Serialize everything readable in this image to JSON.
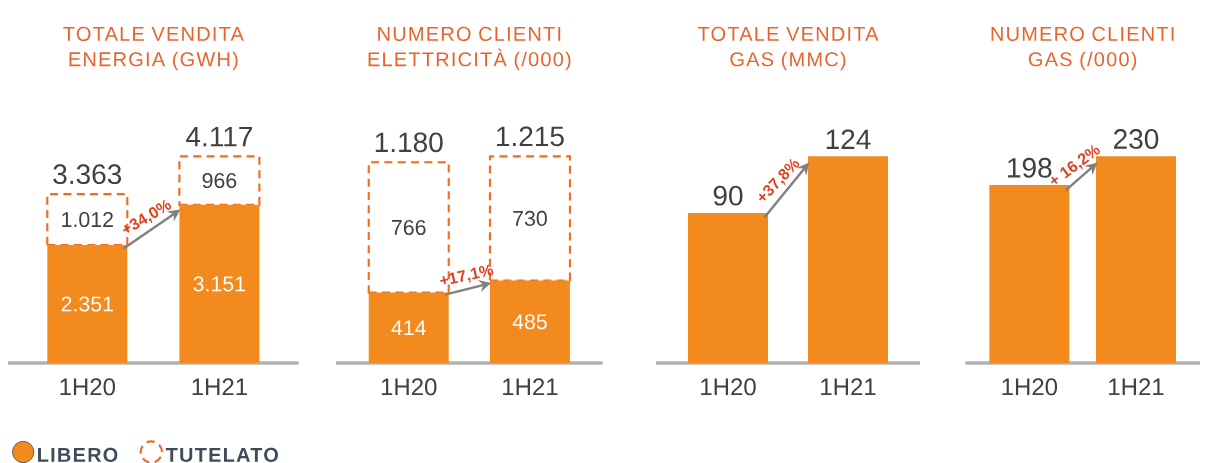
{
  "chart_data": [
    {
      "type": "bar",
      "title": "TOTALE VENDITA ENERGIA (GWH)",
      "stacked": true,
      "categories": [
        "1H20",
        "1H21"
      ],
      "series": [
        {
          "name": "LIBERO",
          "color": "#f28a1e",
          "values": [
            2351,
            3151
          ],
          "value_labels": [
            "2.351",
            "3.151"
          ]
        },
        {
          "name": "TUTELATO",
          "color": "#f26b21",
          "line_style": "dashed",
          "values": [
            1012,
            966
          ],
          "value_labels": [
            "1.012",
            "966"
          ]
        }
      ],
      "totals": [
        "3.363",
        "4.117"
      ],
      "annotations": [
        "+34,0%"
      ],
      "legend": "bottom"
    },
    {
      "type": "bar",
      "title": "NUMERO CLIENTI ELETTRICITÀ (/000)",
      "stacked": true,
      "categories": [
        "1H20",
        "1H21"
      ],
      "series": [
        {
          "color": "#f28a1e",
          "values": [
            414,
            485
          ],
          "value_labels": [
            "414",
            "485"
          ]
        },
        {
          "color": "#f26b21",
          "line_style": "dashed",
          "values": [
            766,
            730
          ],
          "value_labels": [
            "766",
            "730"
          ]
        }
      ],
      "totals": [
        "1.180",
        "1.215"
      ],
      "annotations": [
        "+17,1%"
      ]
    },
    {
      "type": "bar",
      "title": "TOTALE VENDITA GAS (MMC)",
      "categories": [
        "1H20",
        "1H21"
      ],
      "values": [
        90,
        124
      ],
      "color": "#f28a1e",
      "data_labels": true,
      "annotations": [
        "+37,8%"
      ]
    },
    {
      "type": "bar",
      "title": "NUMERO CLIENTI GAS (/000)",
      "categories": [
        "1H20",
        "1H21"
      ],
      "values": [
        198,
        230
      ],
      "color": "#f28a1e",
      "data_labels": true,
      "annotations": [
        "+ 16,2%"
      ]
    }
  ]
}
